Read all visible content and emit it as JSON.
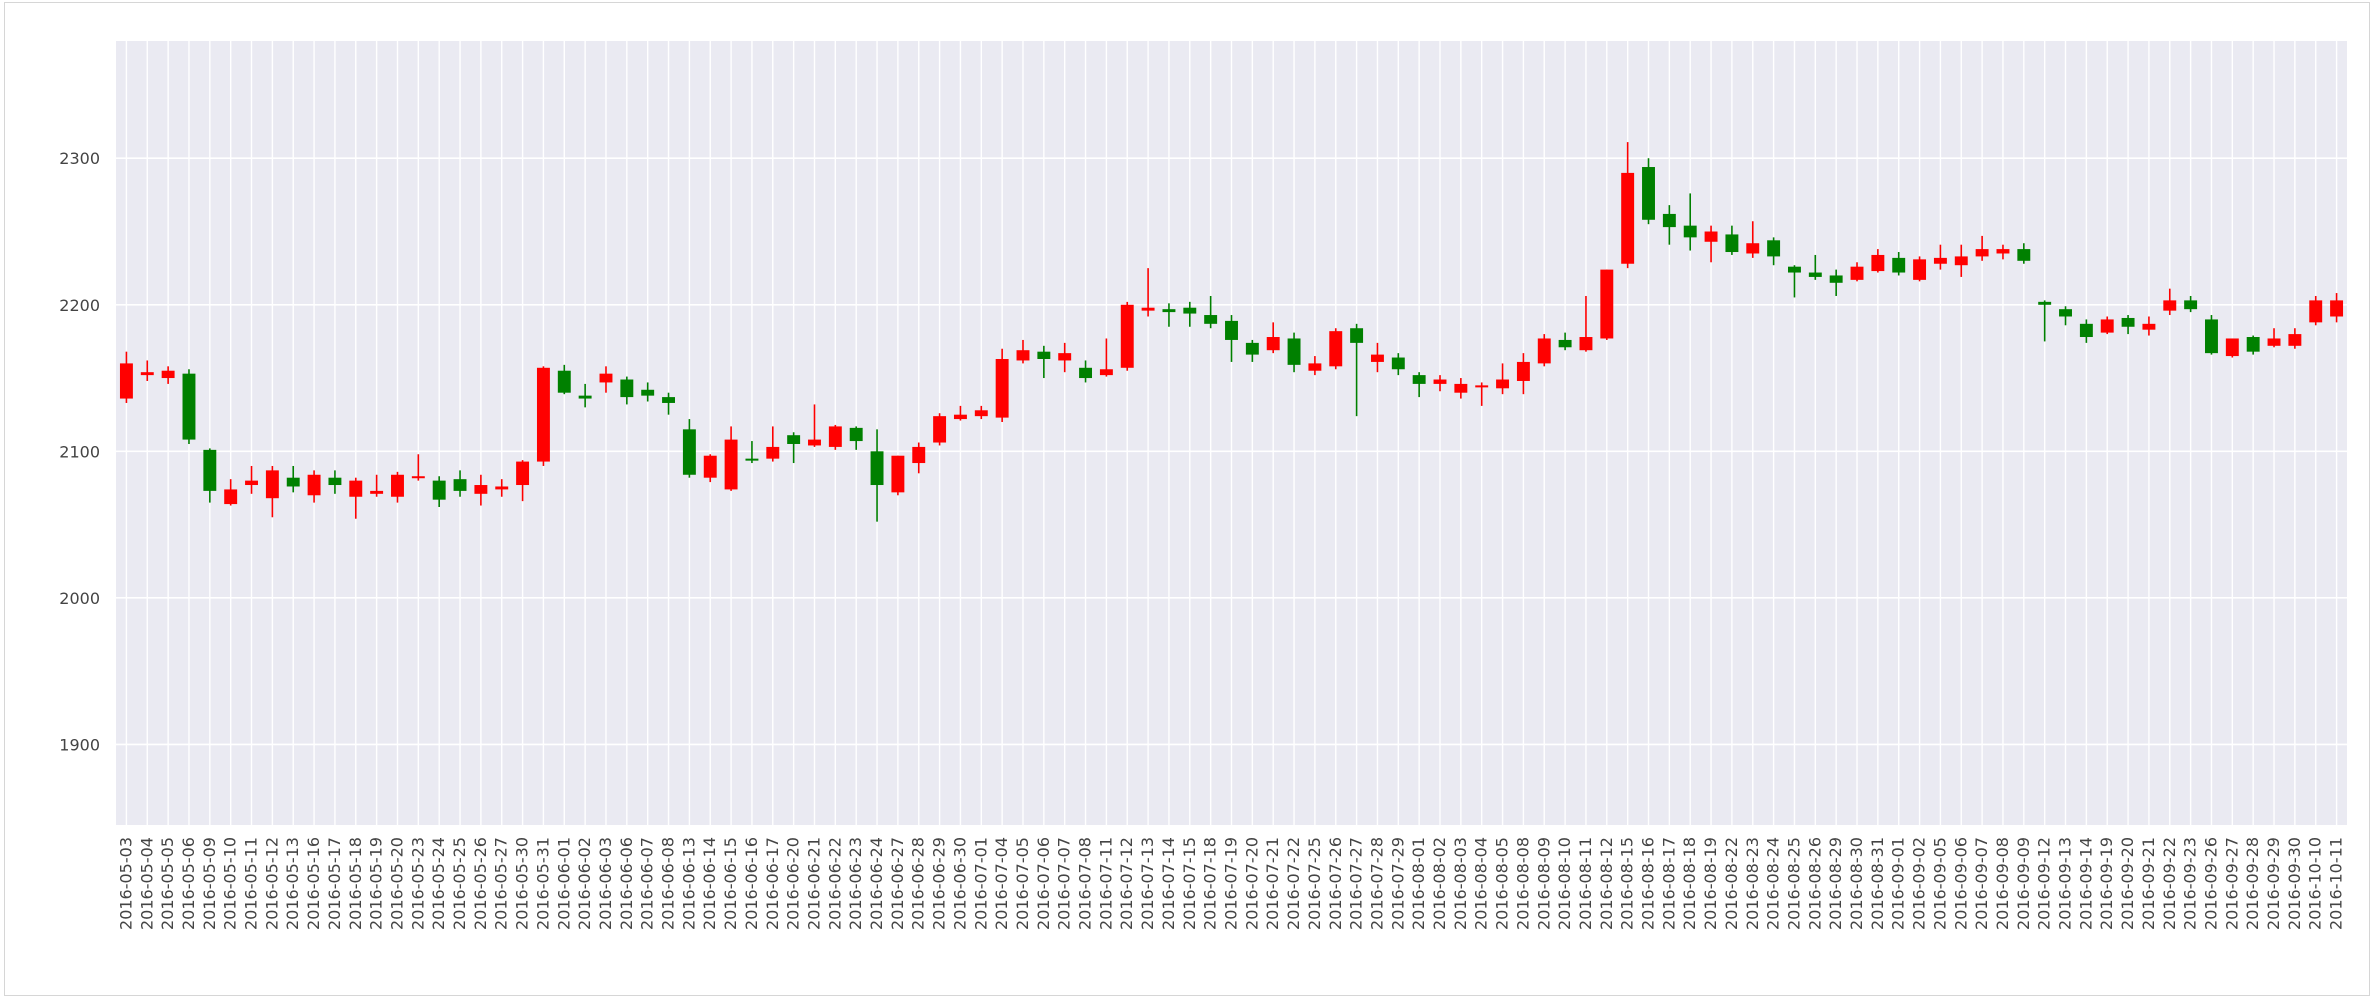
{
  "chart_data": {
    "type": "candlestick",
    "title": "",
    "xlabel": "",
    "ylabel": "",
    "ylim": [
      1845,
      2380
    ],
    "y_ticks": [
      1900,
      2000,
      2100,
      2200,
      2300
    ],
    "grid": true,
    "colors": {
      "up": "#ff0000",
      "down": "#008000",
      "background": "#eaeaf2",
      "grid": "#ffffff"
    },
    "x_tick_labels": [
      "2016-05-03",
      "2016-05-04",
      "2016-05-05",
      "2016-05-06",
      "2016-05-09",
      "2016-05-10",
      "2016-05-11",
      "2016-05-12",
      "2016-05-13",
      "2016-05-16",
      "2016-05-17",
      "2016-05-18",
      "2016-05-19",
      "2016-05-20",
      "2016-05-23",
      "2016-05-24",
      "2016-05-25",
      "2016-05-26",
      "2016-05-27",
      "2016-05-30",
      "2016-05-31",
      "2016-06-01",
      "2016-06-02",
      "2016-06-03",
      "2016-06-06",
      "2016-06-07",
      "2016-06-08",
      "2016-06-13",
      "2016-06-14",
      "2016-06-15",
      "2016-06-16",
      "2016-06-17",
      "2016-06-20",
      "2016-06-21",
      "2016-06-22",
      "2016-06-23",
      "2016-06-24",
      "2016-06-27",
      "2016-06-28",
      "2016-06-29",
      "2016-06-30",
      "2016-07-01",
      "2016-07-04",
      "2016-07-05",
      "2016-07-06",
      "2016-07-07",
      "2016-07-08",
      "2016-07-11",
      "2016-07-12",
      "2016-07-13",
      "2016-07-14",
      "2016-07-15",
      "2016-07-18",
      "2016-07-19",
      "2016-07-20",
      "2016-07-21",
      "2016-07-22",
      "2016-07-25",
      "2016-07-26",
      "2016-07-27",
      "2016-07-28",
      "2016-07-29",
      "2016-08-01",
      "2016-08-02",
      "2016-08-03",
      "2016-08-04",
      "2016-08-05",
      "2016-08-08",
      "2016-08-09",
      "2016-08-10",
      "2016-08-11",
      "2016-08-12",
      "2016-08-15",
      "2016-08-16",
      "2016-08-17",
      "2016-08-18",
      "2016-08-19",
      "2016-08-22",
      "2016-08-23",
      "2016-08-24",
      "2016-08-25",
      "2016-08-26",
      "2016-08-29",
      "2016-08-30",
      "2016-08-31",
      "2016-09-01",
      "2016-09-02",
      "2016-09-05",
      "2016-09-06",
      "2016-09-07",
      "2016-09-08",
      "2016-09-09",
      "2016-09-12",
      "2016-09-13",
      "2016-09-14",
      "2016-09-19",
      "2016-09-20",
      "2016-09-21",
      "2016-09-22",
      "2016-09-23",
      "2016-09-26",
      "2016-09-27",
      "2016-09-28",
      "2016-09-29",
      "2016-09-30",
      "2016-10-10",
      "2016-10-11"
    ],
    "candles": [
      {
        "x": "2016-05-03",
        "open": 2136,
        "high": 2168,
        "low": 2133,
        "close": 2160
      },
      {
        "x": "2016-05-04",
        "open": 2152,
        "high": 2162,
        "low": 2148,
        "close": 2154
      },
      {
        "x": "2016-05-05",
        "open": 2150,
        "high": 2158,
        "low": 2146,
        "close": 2155
      },
      {
        "x": "2016-05-06",
        "open": 2153,
        "high": 2156,
        "low": 2105,
        "close": 2108
      },
      {
        "x": "2016-05-09",
        "open": 2101,
        "high": 2102,
        "low": 2065,
        "close": 2073
      },
      {
        "x": "2016-05-10",
        "open": 2064,
        "high": 2081,
        "low": 2063,
        "close": 2074
      },
      {
        "x": "2016-05-11",
        "open": 2077,
        "high": 2090,
        "low": 2071,
        "close": 2080
      },
      {
        "x": "2016-05-12",
        "open": 2068,
        "high": 2090,
        "low": 2055,
        "close": 2087
      },
      {
        "x": "2016-05-13",
        "open": 2082,
        "high": 2090,
        "low": 2072,
        "close": 2076
      },
      {
        "x": "2016-05-16",
        "open": 2070,
        "high": 2087,
        "low": 2065,
        "close": 2084
      },
      {
        "x": "2016-05-17",
        "open": 2082,
        "high": 2087,
        "low": 2071,
        "close": 2077
      },
      {
        "x": "2016-05-18",
        "open": 2069,
        "high": 2082,
        "low": 2054,
        "close": 2080
      },
      {
        "x": "2016-05-19",
        "open": 2071,
        "high": 2084,
        "low": 2069,
        "close": 2073
      },
      {
        "x": "2016-05-20",
        "open": 2069,
        "high": 2086,
        "low": 2065,
        "close": 2084
      },
      {
        "x": "2016-05-23",
        "open": 2082,
        "high": 2098,
        "low": 2080,
        "close": 2083
      },
      {
        "x": "2016-05-24",
        "open": 2080,
        "high": 2083,
        "low": 2062,
        "close": 2067
      },
      {
        "x": "2016-05-25",
        "open": 2081,
        "high": 2087,
        "low": 2069,
        "close": 2073
      },
      {
        "x": "2016-05-26",
        "open": 2071,
        "high": 2084,
        "low": 2063,
        "close": 2077
      },
      {
        "x": "2016-05-27",
        "open": 2074,
        "high": 2081,
        "low": 2069,
        "close": 2076
      },
      {
        "x": "2016-05-30",
        "open": 2077,
        "high": 2094,
        "low": 2066,
        "close": 2093
      },
      {
        "x": "2016-05-31",
        "open": 2093,
        "high": 2158,
        "low": 2090,
        "close": 2157
      },
      {
        "x": "2016-06-01",
        "open": 2155,
        "high": 2159,
        "low": 2139,
        "close": 2140
      },
      {
        "x": "2016-06-02",
        "open": 2138,
        "high": 2146,
        "low": 2130,
        "close": 2136
      },
      {
        "x": "2016-06-03",
        "open": 2147,
        "high": 2158,
        "low": 2140,
        "close": 2153
      },
      {
        "x": "2016-06-06",
        "open": 2149,
        "high": 2151,
        "low": 2132,
        "close": 2137
      },
      {
        "x": "2016-06-07",
        "open": 2142,
        "high": 2147,
        "low": 2134,
        "close": 2138
      },
      {
        "x": "2016-06-08",
        "open": 2137,
        "high": 2140,
        "low": 2125,
        "close": 2133
      },
      {
        "x": "2016-06-13",
        "open": 2115,
        "high": 2122,
        "low": 2082,
        "close": 2084
      },
      {
        "x": "2016-06-14",
        "open": 2082,
        "high": 2098,
        "low": 2079,
        "close": 2097
      },
      {
        "x": "2016-06-15",
        "open": 2074,
        "high": 2117,
        "low": 2073,
        "close": 2108
      },
      {
        "x": "2016-06-16",
        "open": 2095,
        "high": 2107,
        "low": 2092,
        "close": 2094
      },
      {
        "x": "2016-06-17",
        "open": 2095,
        "high": 2117,
        "low": 2093,
        "close": 2103
      },
      {
        "x": "2016-06-20",
        "open": 2111,
        "high": 2113,
        "low": 2092,
        "close": 2105
      },
      {
        "x": "2016-06-21",
        "open": 2104,
        "high": 2132,
        "low": 2103,
        "close": 2108
      },
      {
        "x": "2016-06-22",
        "open": 2103,
        "high": 2118,
        "low": 2101,
        "close": 2117
      },
      {
        "x": "2016-06-23",
        "open": 2116,
        "high": 2117,
        "low": 2101,
        "close": 2107
      },
      {
        "x": "2016-06-24",
        "open": 2100,
        "high": 2115,
        "low": 2052,
        "close": 2077
      },
      {
        "x": "2016-06-27",
        "open": 2072,
        "high": 2097,
        "low": 2070,
        "close": 2097
      },
      {
        "x": "2016-06-28",
        "open": 2092,
        "high": 2106,
        "low": 2085,
        "close": 2103
      },
      {
        "x": "2016-06-29",
        "open": 2106,
        "high": 2126,
        "low": 2104,
        "close": 2124
      },
      {
        "x": "2016-06-30",
        "open": 2122,
        "high": 2131,
        "low": 2121,
        "close": 2125
      },
      {
        "x": "2016-07-01",
        "open": 2124,
        "high": 2131,
        "low": 2122,
        "close": 2128
      },
      {
        "x": "2016-07-04",
        "open": 2123,
        "high": 2170,
        "low": 2120,
        "close": 2163
      },
      {
        "x": "2016-07-05",
        "open": 2162,
        "high": 2176,
        "low": 2160,
        "close": 2169
      },
      {
        "x": "2016-07-06",
        "open": 2168,
        "high": 2172,
        "low": 2150,
        "close": 2163
      },
      {
        "x": "2016-07-07",
        "open": 2162,
        "high": 2174,
        "low": 2154,
        "close": 2167
      },
      {
        "x": "2016-07-08",
        "open": 2157,
        "high": 2162,
        "low": 2147,
        "close": 2150
      },
      {
        "x": "2016-07-11",
        "open": 2152,
        "high": 2177,
        "low": 2151,
        "close": 2156
      },
      {
        "x": "2016-07-12",
        "open": 2157,
        "high": 2202,
        "low": 2155,
        "close": 2200
      },
      {
        "x": "2016-07-13",
        "open": 2196,
        "high": 2225,
        "low": 2192,
        "close": 2198
      },
      {
        "x": "2016-07-14",
        "open": 2197,
        "high": 2201,
        "low": 2185,
        "close": 2195
      },
      {
        "x": "2016-07-15",
        "open": 2198,
        "high": 2202,
        "low": 2185,
        "close": 2194
      },
      {
        "x": "2016-07-18",
        "open": 2193,
        "high": 2206,
        "low": 2184,
        "close": 2187
      },
      {
        "x": "2016-07-19",
        "open": 2189,
        "high": 2193,
        "low": 2161,
        "close": 2176
      },
      {
        "x": "2016-07-20",
        "open": 2174,
        "high": 2176,
        "low": 2161,
        "close": 2166
      },
      {
        "x": "2016-07-21",
        "open": 2169,
        "high": 2188,
        "low": 2167,
        "close": 2178
      },
      {
        "x": "2016-07-22",
        "open": 2177,
        "high": 2181,
        "low": 2154,
        "close": 2159
      },
      {
        "x": "2016-07-25",
        "open": 2155,
        "high": 2165,
        "low": 2152,
        "close": 2160
      },
      {
        "x": "2016-07-26",
        "open": 2158,
        "high": 2184,
        "low": 2156,
        "close": 2182
      },
      {
        "x": "2016-07-27",
        "open": 2184,
        "high": 2187,
        "low": 2124,
        "close": 2174
      },
      {
        "x": "2016-07-28",
        "open": 2161,
        "high": 2174,
        "low": 2154,
        "close": 2166
      },
      {
        "x": "2016-07-29",
        "open": 2164,
        "high": 2167,
        "low": 2152,
        "close": 2156
      },
      {
        "x": "2016-08-01",
        "open": 2152,
        "high": 2154,
        "low": 2137,
        "close": 2146
      },
      {
        "x": "2016-08-02",
        "open": 2146,
        "high": 2152,
        "low": 2141,
        "close": 2149
      },
      {
        "x": "2016-08-03",
        "open": 2140,
        "high": 2150,
        "low": 2136,
        "close": 2146
      },
      {
        "x": "2016-08-04",
        "open": 2144,
        "high": 2147,
        "low": 2131,
        "close": 2145
      },
      {
        "x": "2016-08-05",
        "open": 2143,
        "high": 2160,
        "low": 2139,
        "close": 2149
      },
      {
        "x": "2016-08-08",
        "open": 2148,
        "high": 2167,
        "low": 2139,
        "close": 2161
      },
      {
        "x": "2016-08-09",
        "open": 2160,
        "high": 2180,
        "low": 2158,
        "close": 2177
      },
      {
        "x": "2016-08-10",
        "open": 2176,
        "high": 2181,
        "low": 2169,
        "close": 2171
      },
      {
        "x": "2016-08-11",
        "open": 2169,
        "high": 2206,
        "low": 2168,
        "close": 2178
      },
      {
        "x": "2016-08-12",
        "open": 2177,
        "high": 2224,
        "low": 2176,
        "close": 2224
      },
      {
        "x": "2016-08-15",
        "open": 2228,
        "high": 2311,
        "low": 2225,
        "close": 2290
      },
      {
        "x": "2016-08-16",
        "open": 2294,
        "high": 2300,
        "low": 2255,
        "close": 2258
      },
      {
        "x": "2016-08-17",
        "open": 2262,
        "high": 2268,
        "low": 2241,
        "close": 2253
      },
      {
        "x": "2016-08-18",
        "open": 2254,
        "high": 2276,
        "low": 2237,
        "close": 2246
      },
      {
        "x": "2016-08-19",
        "open": 2243,
        "high": 2254,
        "low": 2229,
        "close": 2250
      },
      {
        "x": "2016-08-22",
        "open": 2248,
        "high": 2254,
        "low": 2234,
        "close": 2236
      },
      {
        "x": "2016-08-23",
        "open": 2235,
        "high": 2257,
        "low": 2232,
        "close": 2242
      },
      {
        "x": "2016-08-24",
        "open": 2244,
        "high": 2246,
        "low": 2227,
        "close": 2233
      },
      {
        "x": "2016-08-25",
        "open": 2226,
        "high": 2227,
        "low": 2205,
        "close": 2222
      },
      {
        "x": "2016-08-26",
        "open": 2222,
        "high": 2234,
        "low": 2217,
        "close": 2219
      },
      {
        "x": "2016-08-29",
        "open": 2220,
        "high": 2224,
        "low": 2206,
        "close": 2215
      },
      {
        "x": "2016-08-30",
        "open": 2217,
        "high": 2229,
        "low": 2216,
        "close": 2226
      },
      {
        "x": "2016-08-31",
        "open": 2223,
        "high": 2238,
        "low": 2222,
        "close": 2234
      },
      {
        "x": "2016-09-01",
        "open": 2232,
        "high": 2236,
        "low": 2220,
        "close": 2222
      },
      {
        "x": "2016-09-02",
        "open": 2217,
        "high": 2233,
        "low": 2216,
        "close": 2231
      },
      {
        "x": "2016-09-05",
        "open": 2228,
        "high": 2241,
        "low": 2224,
        "close": 2232
      },
      {
        "x": "2016-09-06",
        "open": 2227,
        "high": 2241,
        "low": 2219,
        "close": 2233
      },
      {
        "x": "2016-09-07",
        "open": 2233,
        "high": 2247,
        "low": 2230,
        "close": 2238
      },
      {
        "x": "2016-09-08",
        "open": 2235,
        "high": 2241,
        "low": 2231,
        "close": 2238
      },
      {
        "x": "2016-09-09",
        "open": 2238,
        "high": 2242,
        "low": 2228,
        "close": 2230
      },
      {
        "x": "2016-09-12",
        "open": 2202,
        "high": 2203,
        "low": 2175,
        "close": 2200
      },
      {
        "x": "2016-09-13",
        "open": 2197,
        "high": 2199,
        "low": 2186,
        "close": 2192
      },
      {
        "x": "2016-09-14",
        "open": 2187,
        "high": 2190,
        "low": 2174,
        "close": 2178
      },
      {
        "x": "2016-09-19",
        "open": 2181,
        "high": 2192,
        "low": 2180,
        "close": 2190
      },
      {
        "x": "2016-09-20",
        "open": 2191,
        "high": 2193,
        "low": 2180,
        "close": 2185
      },
      {
        "x": "2016-09-21",
        "open": 2183,
        "high": 2192,
        "low": 2179,
        "close": 2187
      },
      {
        "x": "2016-09-22",
        "open": 2196,
        "high": 2211,
        "low": 2193,
        "close": 2203
      },
      {
        "x": "2016-09-23",
        "open": 2203,
        "high": 2206,
        "low": 2195,
        "close": 2197
      },
      {
        "x": "2016-09-26",
        "open": 2190,
        "high": 2193,
        "low": 2166,
        "close": 2167
      },
      {
        "x": "2016-09-27",
        "open": 2165,
        "high": 2177,
        "low": 2164,
        "close": 2177
      },
      {
        "x": "2016-09-28",
        "open": 2178,
        "high": 2179,
        "low": 2166,
        "close": 2168
      },
      {
        "x": "2016-09-29",
        "open": 2172,
        "high": 2184,
        "low": 2171,
        "close": 2177
      },
      {
        "x": "2016-09-30",
        "open": 2172,
        "high": 2184,
        "low": 2170,
        "close": 2180
      },
      {
        "x": "2016-10-10",
        "open": 2188,
        "high": 2206,
        "low": 2186,
        "close": 2203
      },
      {
        "x": "2016-10-11",
        "open": 2192,
        "high": 2208,
        "low": 2188,
        "close": 2203
      }
    ]
  }
}
